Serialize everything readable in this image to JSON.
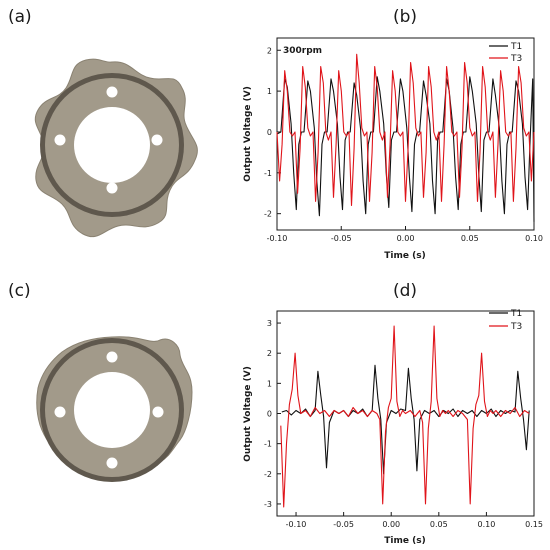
{
  "panels": {
    "a": "(a)",
    "b": "(b)",
    "c": "(c)",
    "d": "(d)"
  },
  "colors": {
    "part_fill": "#a29a8a",
    "part_shadow": "#5f584d",
    "part_inner": "#cfc8bb",
    "T1": "#111111",
    "T3": "#e0141a"
  },
  "chart_data": [
    {
      "panel": "(b)",
      "type": "line",
      "title": "",
      "annotation": "300rpm",
      "xlabel": "Time (s)",
      "ylabel": "Output Voltage (V)",
      "xlim": [
        -0.1,
        0.1
      ],
      "ylim": [
        -2.4,
        2.3
      ],
      "xticks": [
        -0.1,
        -0.05,
        0.0,
        0.05,
        0.1
      ],
      "xtick_labels": [
        "-0.10",
        "-0.05",
        "0.00",
        "0.05",
        "0.10"
      ],
      "yticks": [
        -2,
        -1,
        0,
        1,
        2
      ],
      "ytick_labels": [
        "-2",
        "-1",
        "0",
        "1",
        "2"
      ],
      "grid": false,
      "legend": "top-right",
      "series": [
        {
          "name": "T1",
          "color": "#111111",
          "x": [
            -0.1,
            -0.097,
            -0.094,
            -0.092,
            -0.089,
            -0.087,
            -0.085,
            -0.083,
            -0.081,
            -0.079,
            -0.076,
            -0.074,
            -0.071,
            -0.069,
            -0.067,
            -0.065,
            -0.063,
            -0.061,
            -0.058,
            -0.056,
            -0.053,
            -0.051,
            -0.049,
            -0.047,
            -0.045,
            -0.043,
            -0.04,
            -0.038,
            -0.035,
            -0.033,
            -0.031,
            -0.029,
            -0.027,
            -0.025,
            -0.022,
            -0.02,
            -0.017,
            -0.015,
            -0.013,
            -0.011,
            -0.009,
            -0.007,
            -0.004,
            -0.002,
            0.001,
            0.003,
            0.005,
            0.007,
            0.009,
            0.011,
            0.014,
            0.016,
            0.019,
            0.021,
            0.023,
            0.025,
            0.027,
            0.029,
            0.032,
            0.034,
            0.037,
            0.039,
            0.041,
            0.043,
            0.045,
            0.047,
            0.05,
            0.052,
            0.055,
            0.057,
            0.059,
            0.061,
            0.063,
            0.065,
            0.068,
            0.07,
            0.073,
            0.075,
            0.077,
            0.079,
            0.081,
            0.083,
            0.086,
            0.088,
            0.091,
            0.093,
            0.095,
            0.097,
            0.099,
            0.1
          ],
          "y": [
            -0.05,
            0.0,
            1.3,
            1.1,
            0.2,
            -1.0,
            -1.9,
            -0.3,
            0.0,
            0.0,
            1.25,
            1.0,
            0.1,
            -1.2,
            -2.05,
            -0.3,
            0.0,
            0.0,
            1.3,
            1.0,
            0.2,
            -1.1,
            -1.9,
            -0.2,
            0.0,
            0.0,
            1.2,
            0.9,
            0.1,
            -1.2,
            -2.0,
            -0.3,
            0.0,
            0.0,
            1.35,
            1.0,
            0.2,
            -1.0,
            -1.85,
            -0.2,
            0.0,
            0.0,
            1.3,
            1.0,
            0.1,
            -1.1,
            -1.95,
            -0.3,
            0.0,
            0.0,
            1.25,
            0.9,
            0.2,
            -1.2,
            -2.0,
            -0.2,
            0.0,
            0.0,
            1.3,
            1.0,
            0.1,
            -1.1,
            -1.9,
            -0.3,
            0.0,
            0.0,
            1.35,
            1.0,
            0.2,
            -1.0,
            -1.95,
            -0.2,
            0.0,
            0.0,
            1.3,
            0.9,
            0.1,
            -1.2,
            -2.0,
            -0.3,
            0.0,
            0.0,
            1.25,
            1.0,
            0.2,
            -1.1,
            -1.9,
            -0.2,
            1.3,
            -2.2
          ]
        },
        {
          "name": "T3",
          "color": "#e0141a",
          "x": [
            -0.1,
            -0.098,
            -0.096,
            -0.094,
            -0.092,
            -0.09,
            -0.088,
            -0.086,
            -0.084,
            -0.082,
            -0.08,
            -0.078,
            -0.076,
            -0.074,
            -0.072,
            -0.07,
            -0.068,
            -0.066,
            -0.064,
            -0.062,
            -0.06,
            -0.058,
            -0.056,
            -0.054,
            -0.052,
            -0.05,
            -0.048,
            -0.046,
            -0.044,
            -0.042,
            -0.04,
            -0.038,
            -0.036,
            -0.034,
            -0.032,
            -0.03,
            -0.028,
            -0.026,
            -0.024,
            -0.022,
            -0.02,
            -0.018,
            -0.016,
            -0.014,
            -0.012,
            -0.01,
            -0.008,
            -0.006,
            -0.004,
            -0.002,
            0.0,
            0.002,
            0.004,
            0.006,
            0.008,
            0.01,
            0.012,
            0.014,
            0.016,
            0.018,
            0.02,
            0.022,
            0.024,
            0.026,
            0.028,
            0.03,
            0.032,
            0.034,
            0.036,
            0.038,
            0.04,
            0.042,
            0.044,
            0.046,
            0.048,
            0.05,
            0.052,
            0.054,
            0.056,
            0.058,
            0.06,
            0.062,
            0.064,
            0.066,
            0.068,
            0.07,
            0.072,
            0.074,
            0.076,
            0.078,
            0.08,
            0.082,
            0.084,
            0.086,
            0.088,
            0.09,
            0.092,
            0.094,
            0.096,
            0.098,
            0.1
          ],
          "y": [
            0.0,
            -1.2,
            -0.3,
            1.5,
            1.0,
            0.0,
            -0.1,
            0.0,
            -1.5,
            -0.4,
            1.6,
            1.1,
            0.1,
            -0.1,
            0.0,
            -1.7,
            -0.5,
            1.6,
            1.2,
            0.0,
            -0.2,
            0.0,
            -1.6,
            -0.3,
            1.5,
            1.0,
            0.0,
            -0.1,
            0.0,
            -1.8,
            -0.4,
            1.9,
            1.2,
            0.1,
            -0.1,
            0.0,
            -1.7,
            -0.5,
            1.6,
            1.1,
            0.0,
            -0.2,
            0.0,
            -1.6,
            -0.3,
            1.5,
            1.0,
            0.0,
            -0.1,
            0.0,
            -1.7,
            -0.4,
            1.7,
            1.2,
            0.1,
            -0.1,
            0.0,
            -1.6,
            -0.5,
            1.6,
            1.1,
            0.0,
            -0.2,
            0.0,
            -1.7,
            -0.3,
            1.6,
            1.0,
            0.0,
            -0.1,
            0.0,
            -1.6,
            -0.4,
            1.7,
            1.2,
            0.1,
            -0.1,
            0.0,
            -1.7,
            -0.5,
            1.6,
            1.1,
            0.0,
            -0.2,
            0.0,
            -1.6,
            -0.3,
            1.5,
            1.0,
            0.0,
            -0.1,
            0.0,
            -1.7,
            -0.4,
            1.6,
            1.2,
            0.1,
            -0.1,
            0.0,
            -1.2,
            0.0
          ]
        }
      ]
    },
    {
      "panel": "(d)",
      "type": "line",
      "title": "",
      "xlabel": "Time (s)",
      "ylabel": "Output Voltage (V)",
      "xlim": [
        -0.12,
        0.15
      ],
      "ylim": [
        -3.4,
        3.4
      ],
      "xticks": [
        -0.1,
        -0.05,
        0.0,
        0.05,
        0.1,
        0.15
      ],
      "xtick_labels": [
        "-0.10",
        "-0.05",
        "0.00",
        "0.05",
        "0.10",
        "0.15"
      ],
      "yticks": [
        -3,
        -2,
        -1,
        0,
        1,
        2,
        3
      ],
      "ytick_labels": [
        "-3",
        "-2",
        "-1",
        "0",
        "1",
        "2",
        "3"
      ],
      "grid": false,
      "legend": "top-right",
      "series": [
        {
          "name": "T1",
          "color": "#111111",
          "x": [
            -0.115,
            -0.11,
            -0.105,
            -0.1,
            -0.095,
            -0.09,
            -0.085,
            -0.08,
            -0.077,
            -0.074,
            -0.071,
            -0.068,
            -0.065,
            -0.06,
            -0.055,
            -0.05,
            -0.045,
            -0.04,
            -0.035,
            -0.03,
            -0.025,
            -0.02,
            -0.017,
            -0.014,
            -0.011,
            -0.008,
            -0.005,
            0.0,
            0.005,
            0.01,
            0.015,
            0.018,
            0.021,
            0.024,
            0.027,
            0.03,
            0.035,
            0.04,
            0.045,
            0.05,
            0.055,
            0.06,
            0.065,
            0.07,
            0.075,
            0.08,
            0.085,
            0.09,
            0.095,
            0.1,
            0.105,
            0.11,
            0.115,
            0.12,
            0.125,
            0.13,
            0.133,
            0.136,
            0.139,
            0.142,
            0.145
          ],
          "y": [
            0.05,
            0.1,
            -0.05,
            0.1,
            0.0,
            0.15,
            -0.1,
            0.1,
            1.4,
            0.6,
            -0.1,
            -1.8,
            -0.3,
            0.1,
            0.0,
            0.1,
            -0.1,
            0.1,
            0.0,
            0.15,
            -0.1,
            0.1,
            1.6,
            0.5,
            -0.2,
            -2.0,
            -0.3,
            0.1,
            0.0,
            0.15,
            0.1,
            1.5,
            0.5,
            -0.2,
            -1.9,
            -0.2,
            0.1,
            0.0,
            0.1,
            -0.1,
            0.1,
            0.0,
            0.15,
            -0.1,
            0.1,
            0.0,
            0.1,
            -0.1,
            0.1,
            0.0,
            0.15,
            -0.1,
            0.1,
            0.0,
            0.1,
            0.05,
            1.4,
            0.5,
            -0.2,
            -1.2,
            0.1
          ]
        },
        {
          "name": "T3",
          "color": "#e0141a",
          "x": [
            -0.116,
            -0.113,
            -0.11,
            -0.107,
            -0.104,
            -0.101,
            -0.098,
            -0.095,
            -0.09,
            -0.085,
            -0.08,
            -0.075,
            -0.07,
            -0.065,
            -0.06,
            -0.055,
            -0.05,
            -0.045,
            -0.04,
            -0.035,
            -0.03,
            -0.025,
            -0.02,
            -0.015,
            -0.012,
            -0.009,
            -0.006,
            -0.003,
            0.0,
            0.003,
            0.006,
            0.009,
            0.012,
            0.015,
            0.02,
            0.025,
            0.03,
            0.033,
            0.036,
            0.039,
            0.042,
            0.045,
            0.048,
            0.051,
            0.054,
            0.057,
            0.06,
            0.065,
            0.07,
            0.075,
            0.08,
            0.083,
            0.086,
            0.089,
            0.092,
            0.095,
            0.098,
            0.101,
            0.104,
            0.107,
            0.11,
            0.115,
            0.12,
            0.125,
            0.13,
            0.135,
            0.14,
            0.145
          ],
          "y": [
            -0.4,
            -3.1,
            -1.0,
            0.3,
            0.8,
            2.0,
            0.6,
            0.0,
            0.1,
            -0.1,
            0.2,
            0.0,
            0.1,
            -0.1,
            0.1,
            0.0,
            0.1,
            -0.1,
            0.2,
            0.0,
            0.1,
            -0.1,
            0.1,
            0.0,
            -0.2,
            -3.0,
            -0.6,
            0.2,
            0.5,
            2.9,
            0.4,
            -0.1,
            0.1,
            0.0,
            0.1,
            -0.1,
            0.1,
            -0.3,
            -3.0,
            -0.5,
            0.4,
            2.9,
            0.5,
            -0.1,
            0.1,
            0.0,
            0.1,
            -0.1,
            0.1,
            0.0,
            -0.2,
            -3.0,
            -0.5,
            0.3,
            0.6,
            2.0,
            0.4,
            -0.1,
            0.1,
            0.0,
            0.1,
            -0.1,
            0.1,
            0.0,
            0.2,
            -0.1,
            0.1,
            0.0
          ]
        }
      ]
    }
  ]
}
